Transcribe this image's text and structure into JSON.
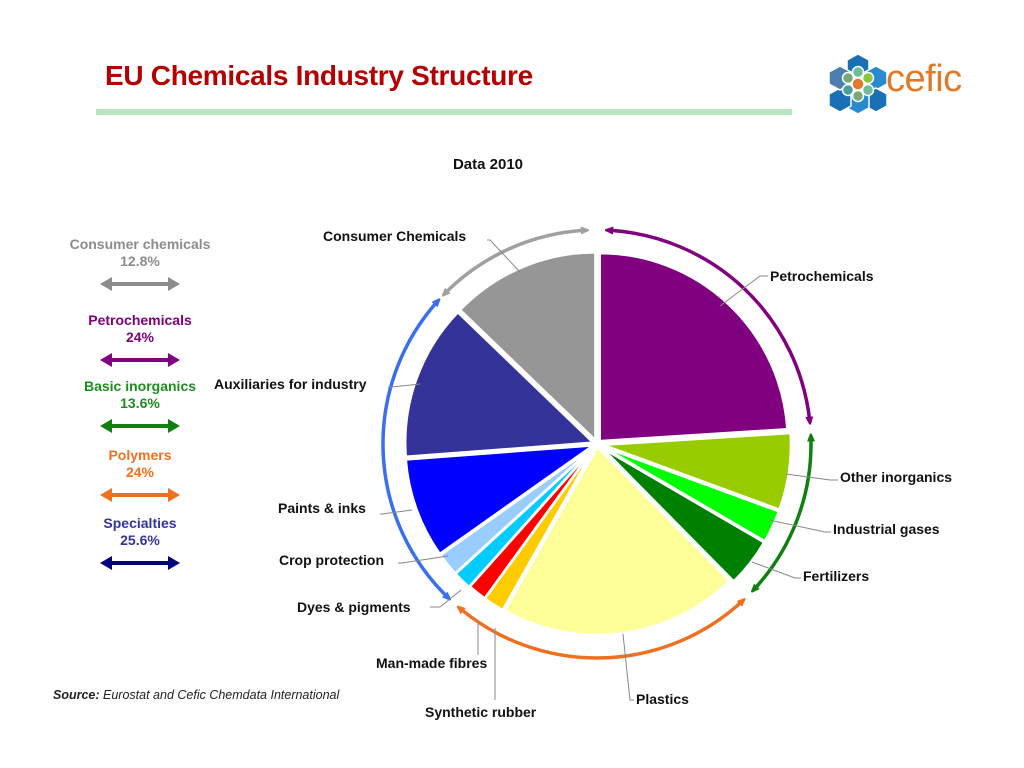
{
  "header": {
    "title": "EU Chemicals Industry Structure",
    "logo_text": "cefic",
    "title_color": "#b40000",
    "rule_color": "#b8e4c0"
  },
  "chart_data": {
    "type": "pie",
    "title": "Data 2010",
    "unit": "%",
    "start_angle_deg": 0,
    "direction": "clockwise",
    "slices": [
      {
        "label": "Petrochemicals",
        "group": "Petrochemicals",
        "value": 24.0,
        "color": "#800080"
      },
      {
        "label": "Other inorganics",
        "group": "Basic inorganics",
        "value": 6.6,
        "color": "#99cc00"
      },
      {
        "label": "Industrial gases",
        "group": "Basic inorganics",
        "value": 2.8,
        "color": "#00ff00"
      },
      {
        "label": "Fertilizers",
        "group": "Basic inorganics",
        "value": 4.2,
        "color": "#008000"
      },
      {
        "label": "Plastics",
        "group": "Polymers",
        "value": 20.6,
        "color": "#ffff99"
      },
      {
        "label": "Synthetic rubber",
        "group": "Polymers",
        "value": 1.8,
        "color": "#ffcc00"
      },
      {
        "label": "Man-made fibres",
        "group": "Polymers",
        "value": 1.6,
        "color": "#ff0000"
      },
      {
        "label": "Dyes & pigments",
        "group": "Specialties",
        "value": 1.6,
        "color": "#00ccff"
      },
      {
        "label": "Crop protection",
        "group": "Specialties",
        "value": 2.0,
        "color": "#99ccff"
      },
      {
        "label": "Paints & inks",
        "group": "Specialties",
        "value": 8.6,
        "color": "#0000ff"
      },
      {
        "label": "Auxiliaries for industry",
        "group": "Specialties",
        "value": 13.4,
        "color": "#333399"
      },
      {
        "label": "Consumer Chemicals",
        "group": "Consumer chemicals",
        "value": 12.8,
        "color": "#969696"
      }
    ],
    "groups": [
      {
        "name": "Consumer chemicals",
        "value": 12.8,
        "value_label": "12.8%",
        "color": "#8c8c8c",
        "arrow_color": "#8c8c8c"
      },
      {
        "name": "Petrochemicals",
        "value": 24,
        "value_label": "24%",
        "color": "#800080",
        "arrow_color": "#800080"
      },
      {
        "name": "Basic inorganics",
        "value": 13.6,
        "value_label": "13.6%",
        "color": "#1e8c1e",
        "arrow_color": "#108010"
      },
      {
        "name": "Polymers",
        "value": 24,
        "value_label": "24%",
        "color": "#f07020",
        "arrow_color": "#f07020"
      },
      {
        "name": "Specialties",
        "value": 25.6,
        "value_label": "25.6%",
        "color": "#333399",
        "arrow_color": "#000080"
      }
    ],
    "legend_position": "left"
  },
  "source": {
    "prefix": "Source:",
    "text": " Eurostat and Cefic Chemdata International"
  }
}
